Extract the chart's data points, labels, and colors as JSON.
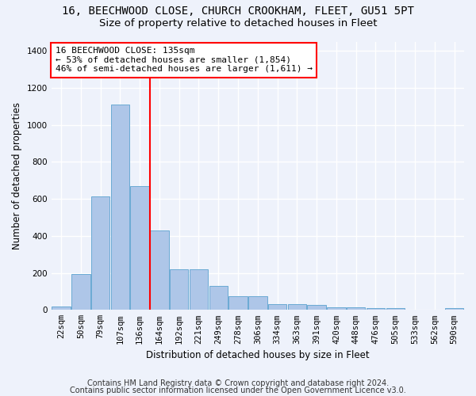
{
  "title_line1": "16, BEECHWOOD CLOSE, CHURCH CROOKHAM, FLEET, GU51 5PT",
  "title_line2": "Size of property relative to detached houses in Fleet",
  "xlabel": "Distribution of detached houses by size in Fleet",
  "ylabel": "Number of detached properties",
  "bar_labels": [
    "22sqm",
    "50sqm",
    "79sqm",
    "107sqm",
    "136sqm",
    "164sqm",
    "192sqm",
    "221sqm",
    "249sqm",
    "278sqm",
    "306sqm",
    "334sqm",
    "363sqm",
    "391sqm",
    "420sqm",
    "448sqm",
    "476sqm",
    "505sqm",
    "533sqm",
    "562sqm",
    "590sqm"
  ],
  "bar_values": [
    18,
    195,
    615,
    1110,
    670,
    430,
    220,
    220,
    130,
    75,
    75,
    30,
    30,
    25,
    15,
    15,
    10,
    10,
    0,
    0,
    10
  ],
  "bar_color": "#aec6e8",
  "bar_edge_color": "#6aaad4",
  "vline_bin_index": 4,
  "annotation_text": "16 BEECHWOOD CLOSE: 135sqm\n← 53% of detached houses are smaller (1,854)\n46% of semi-detached houses are larger (1,611) →",
  "annotation_box_color": "white",
  "annotation_box_edge_color": "red",
  "vline_color": "red",
  "ylim": [
    0,
    1450
  ],
  "yticks": [
    0,
    200,
    400,
    600,
    800,
    1000,
    1200,
    1400
  ],
  "footer_line1": "Contains HM Land Registry data © Crown copyright and database right 2024.",
  "footer_line2": "Contains public sector information licensed under the Open Government Licence v3.0.",
  "background_color": "#eef2fb",
  "grid_color": "#ffffff",
  "title_fontsize": 10,
  "subtitle_fontsize": 9.5,
  "axis_label_fontsize": 8.5,
  "tick_fontsize": 7.5,
  "annotation_fontsize": 8,
  "footer_fontsize": 7
}
